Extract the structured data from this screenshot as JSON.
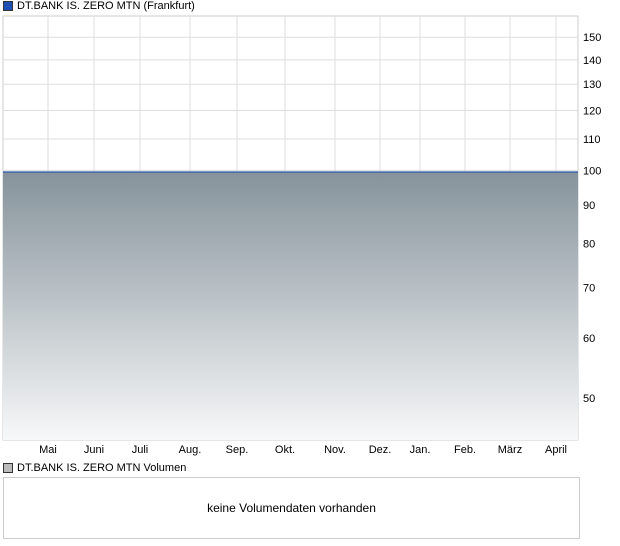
{
  "legend": {
    "main": "DT.BANK IS. ZERO MTN (Frankfurt)",
    "volume": "DT.BANK IS. ZERO MTN Volumen"
  },
  "colors": {
    "main_marker": "#1f4fb5",
    "volume_marker": "#bbbbbb",
    "line": "#2a56a8",
    "fill_top": "#86939b",
    "fill_bottom": "#f7f8f9"
  },
  "volume": {
    "message": "keine Volumendaten vorhanden"
  },
  "chart_data": {
    "type": "area",
    "scale": "log",
    "ylim": [
      44,
      160
    ],
    "yticks": [
      150,
      140,
      130,
      120,
      110,
      100,
      90,
      80,
      70,
      60,
      50
    ],
    "xticks": [
      "Mai",
      "Juni",
      "Juli",
      "Aug.",
      "Sep.",
      "Okt.",
      "Nov.",
      "Dez.",
      "Jan.",
      "Feb.",
      "März",
      "April"
    ],
    "grid": true,
    "series": [
      {
        "name": "DT.BANK IS. ZERO MTN (Frankfurt)",
        "values": [
          99.5,
          99.5,
          99.5,
          99.5,
          99.5,
          99.5,
          99.5,
          99.5,
          99.5,
          99.5,
          99.5,
          99.5,
          99.5
        ]
      }
    ]
  }
}
